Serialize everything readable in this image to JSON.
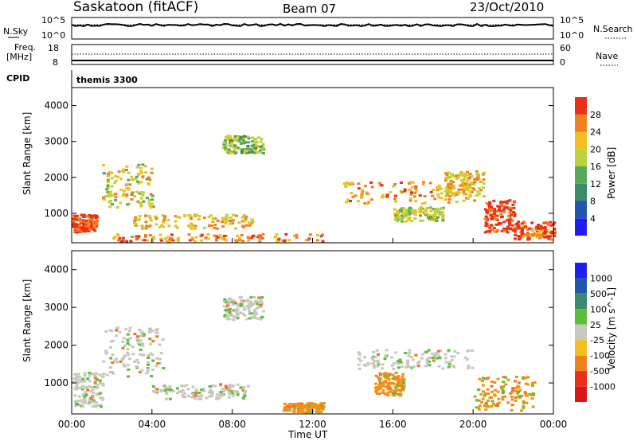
{
  "header": {
    "station": "Saskatoon (fitACF)",
    "beam": "Beam 07",
    "date": "23/Oct/2010"
  },
  "noise_panel": {
    "left_label": "N.Sky",
    "right_label": "N.Search",
    "left_ticks": [
      "10^5",
      "10^0"
    ],
    "right_ticks": [
      "10^5",
      "10^0"
    ]
  },
  "freq_panel": {
    "left_label_1": "Freq.",
    "left_label_2": "[MHz]",
    "right_label": "Nave",
    "left_ticks": [
      "18",
      "8"
    ],
    "right_ticks": [
      "60",
      "0"
    ]
  },
  "cpid": {
    "label": "CPID",
    "value": "themis 3300"
  },
  "x_axis": {
    "label": "Time UT",
    "ticks": [
      "00:00",
      "04:00",
      "08:00",
      "12:00",
      "16:00",
      "20:00",
      "00:00"
    ]
  },
  "chart_data": [
    {
      "type": "heatmap",
      "panel": "power",
      "xlabel": "Time UT",
      "ylabel": "Slant Range [km]",
      "x_range_hours": [
        0,
        24
      ],
      "ylim": [
        180,
        4500
      ],
      "y_ticks": [
        "1000",
        "2000",
        "3000",
        "4000"
      ],
      "colorbar": {
        "label": "Power [dB]",
        "ticks": [
          "4",
          "8",
          "12",
          "16",
          "20",
          "24",
          "28"
        ],
        "range": [
          0,
          30
        ]
      },
      "features": [
        {
          "x": [
            0.0,
            1.2
          ],
          "y": [
            500,
            1000
          ],
          "level": 28
        },
        {
          "x": [
            1.5,
            4.0
          ],
          "y": [
            1200,
            2400
          ],
          "level": 18
        },
        {
          "x": [
            3.0,
            9.0
          ],
          "y": [
            600,
            1000
          ],
          "level": 20
        },
        {
          "x": [
            2.0,
            12.5
          ],
          "y": [
            250,
            450
          ],
          "level": 24
        },
        {
          "x": [
            7.5,
            9.5
          ],
          "y": [
            2700,
            3200
          ],
          "level": 14
        },
        {
          "x": [
            13.5,
            20.0
          ],
          "y": [
            1300,
            1900
          ],
          "level": 22
        },
        {
          "x": [
            16.0,
            18.5
          ],
          "y": [
            800,
            1200
          ],
          "level": 16
        },
        {
          "x": [
            18.5,
            20.5
          ],
          "y": [
            1500,
            2200
          ],
          "level": 20
        },
        {
          "x": [
            20.5,
            22.0
          ],
          "y": [
            500,
            1400
          ],
          "level": 28
        },
        {
          "x": [
            22.0,
            24.0
          ],
          "y": [
            300,
            800
          ],
          "level": 26
        }
      ]
    },
    {
      "type": "heatmap",
      "panel": "velocity",
      "xlabel": "Time UT",
      "ylabel": "Slant Range [km]",
      "x_range_hours": [
        0,
        24
      ],
      "ylim": [
        180,
        4500
      ],
      "y_ticks": [
        "1000",
        "2000",
        "3000",
        "4000"
      ],
      "colorbar": {
        "label": "Velocity [m s^-1]",
        "ticks": [
          "1000",
          "500",
          "100",
          "25",
          "-25",
          "-100",
          "-500",
          "-1000"
        ]
      },
      "features": [
        {
          "x": [
            0.0,
            1.5
          ],
          "y": [
            400,
            1300
          ],
          "level": "ground"
        },
        {
          "x": [
            1.5,
            4.5
          ],
          "y": [
            1200,
            2500
          ],
          "level": "ground"
        },
        {
          "x": [
            4.0,
            9.0
          ],
          "y": [
            600,
            1000
          ],
          "level": "ground"
        },
        {
          "x": [
            7.5,
            9.5
          ],
          "y": [
            2700,
            3300
          ],
          "level": "ground"
        },
        {
          "x": [
            10.5,
            12.5
          ],
          "y": [
            250,
            500
          ],
          "level": "away_fast"
        },
        {
          "x": [
            14.0,
            20.0
          ],
          "y": [
            1400,
            1900
          ],
          "level": "ground"
        },
        {
          "x": [
            15.0,
            16.5
          ],
          "y": [
            700,
            1300
          ],
          "level": "away_fast"
        },
        {
          "x": [
            20.0,
            23.0
          ],
          "y": [
            300,
            1200
          ],
          "level": "away_fast"
        }
      ]
    }
  ]
}
